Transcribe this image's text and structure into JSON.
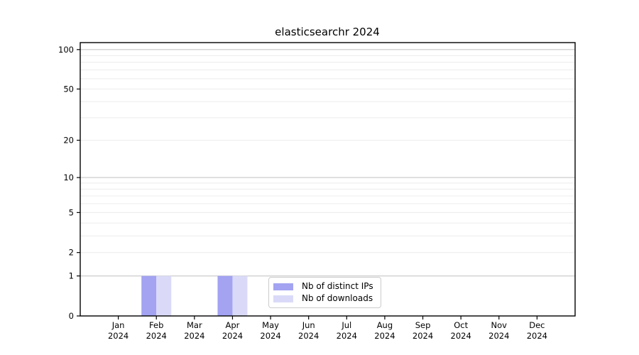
{
  "page": {
    "background_color": "#ffffff"
  },
  "chart_data": {
    "type": "bar",
    "title": "elasticsearchr 2024",
    "xlabel": "",
    "ylabel": "",
    "yscale": "log1p",
    "ylim": [
      0,
      113
    ],
    "grid": true,
    "yticks": [
      0,
      1,
      2,
      5,
      10,
      20,
      50,
      100
    ],
    "major_gridlines": [
      1,
      10,
      100
    ],
    "minor_gridlines": [
      2,
      3,
      4,
      5,
      6,
      7,
      8,
      9,
      20,
      30,
      40,
      50,
      60,
      70,
      80,
      90
    ],
    "categories": [
      "Jan 2024",
      "Feb 2024",
      "Mar 2024",
      "Apr 2024",
      "May 2024",
      "Jun 2024",
      "Jul 2024",
      "Aug 2024",
      "Sep 2024",
      "Oct 2024",
      "Nov 2024",
      "Dec 2024"
    ],
    "x_tick_month_labels": [
      "Jan",
      "Feb",
      "Mar",
      "Apr",
      "May",
      "Jun",
      "Jul",
      "Aug",
      "Sep",
      "Oct",
      "Nov",
      "Dec"
    ],
    "x_tick_year_label": "2024",
    "series": [
      {
        "name": "Nb of distinct IPs",
        "color": "#a3a3f2",
        "values": [
          0,
          1,
          0,
          1,
          0,
          0,
          0,
          0,
          0,
          0,
          0,
          0
        ]
      },
      {
        "name": "Nb of downloads",
        "color": "#dadaf8",
        "values": [
          0,
          1,
          0,
          1,
          0,
          0,
          0,
          0,
          0,
          0,
          0,
          0
        ]
      }
    ],
    "legend_position": "inside-bottom-center-left",
    "colors": {
      "major_grid": "#c6c6c6",
      "minor_grid": "#ececec",
      "frame": "#000000",
      "text": "#000000",
      "legend_border": "#cccccc",
      "legend_background": "#ffffff"
    }
  }
}
